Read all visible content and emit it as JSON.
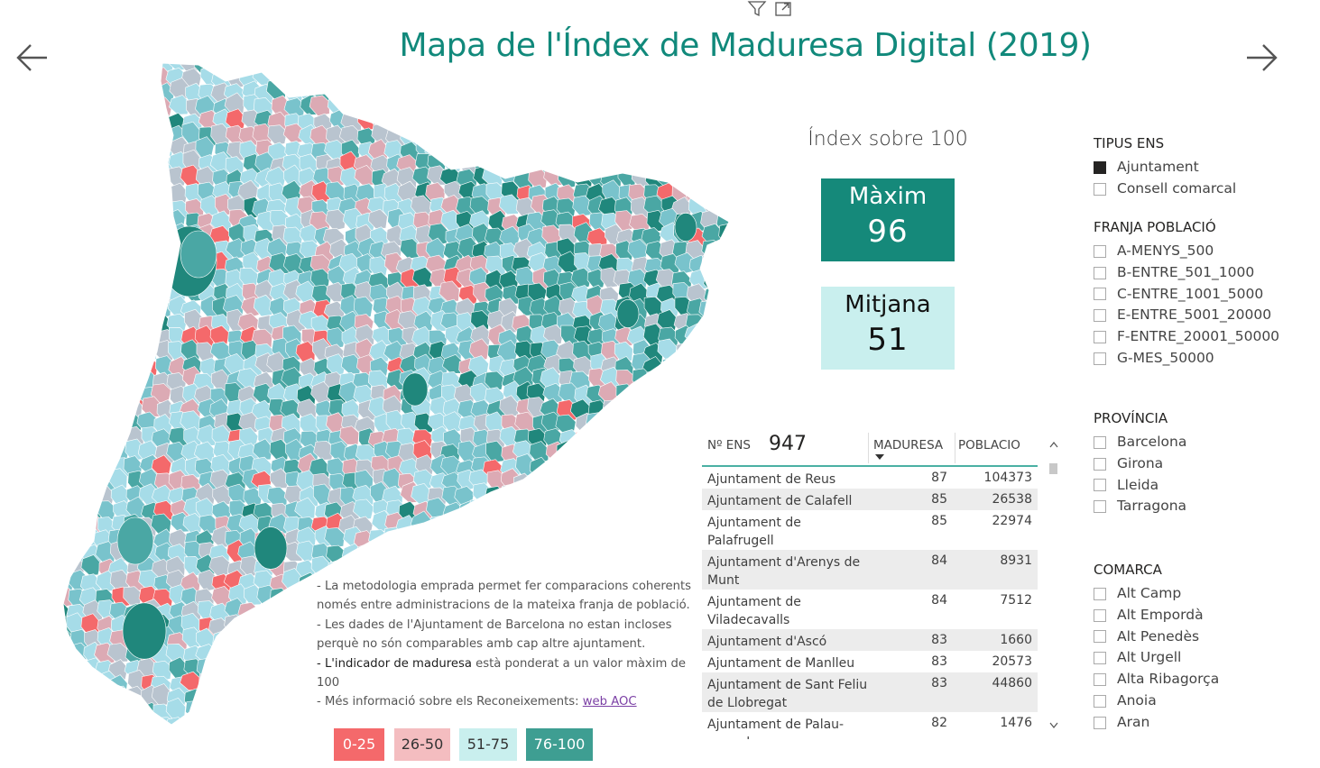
{
  "header": {
    "title": "Mapa de l'Índex de Maduresa Digital (2019)",
    "back_icon": "arrow-left-icon",
    "forward_icon": "arrow-right-icon",
    "filter_icon": "filter-icon",
    "focus_icon": "focus-mode-icon"
  },
  "kpi": {
    "heading": "Índex sobre 100",
    "max_label": "Màxim",
    "max_value": "96",
    "mean_label": "Mitjana",
    "mean_value": "51",
    "max_color": "#15897a",
    "mean_color": "#c9efee"
  },
  "slicers": {
    "tipus": {
      "title": "TIPUS ENS",
      "options": [
        {
          "label": "Ajuntament",
          "checked": true
        },
        {
          "label": "Consell comarcal",
          "checked": false
        }
      ]
    },
    "franja": {
      "title": "FRANJA POBLACIÓ",
      "options": [
        {
          "label": "A-MENYS_500"
        },
        {
          "label": "B-ENTRE_501_1000"
        },
        {
          "label": "C-ENTRE_1001_5000"
        },
        {
          "label": "E-ENTRE_5001_20000"
        },
        {
          "label": "F-ENTRE_20001_50000"
        },
        {
          "label": "G-MES_50000"
        }
      ]
    },
    "provincia": {
      "title": "PROVÍNCIA",
      "options": [
        {
          "label": "Barcelona"
        },
        {
          "label": "Girona"
        },
        {
          "label": "Lleida"
        },
        {
          "label": "Tarragona"
        }
      ]
    },
    "comarca": {
      "title": "COMARCA",
      "options": [
        {
          "label": "Alt Camp"
        },
        {
          "label": "Alt Empordà"
        },
        {
          "label": "Alt Penedès"
        },
        {
          "label": "Alt Urgell"
        },
        {
          "label": "Alta Ribagorça"
        },
        {
          "label": "Anoia"
        },
        {
          "label": "Aran"
        }
      ]
    }
  },
  "table": {
    "count_label": "Nº ENS",
    "count_value": "947",
    "col_maduresa": "MADURESA",
    "col_poblacio": "POBLACIO",
    "sort_icon": "sort-desc-icon",
    "rows": [
      {
        "name": "Ajuntament de Reus",
        "maduresa": "87",
        "poblacio": "104373"
      },
      {
        "name": "Ajuntament de Calafell",
        "maduresa": "85",
        "poblacio": "26538"
      },
      {
        "name": "Ajuntament de Palafrugell",
        "maduresa": "85",
        "poblacio": "22974"
      },
      {
        "name": "Ajuntament d'Arenys de Munt",
        "maduresa": "84",
        "poblacio": "8931"
      },
      {
        "name": "Ajuntament de Viladecavalls",
        "maduresa": "84",
        "poblacio": "7512"
      },
      {
        "name": "Ajuntament d'Ascó",
        "maduresa": "83",
        "poblacio": "1660"
      },
      {
        "name": "Ajuntament de Manlleu",
        "maduresa": "83",
        "poblacio": "20573"
      },
      {
        "name": "Ajuntament de Sant Feliu de Llobregat",
        "maduresa": "83",
        "poblacio": "44860"
      },
      {
        "name": "Ajuntament de Palau-saverdera",
        "maduresa": "82",
        "poblacio": "1476"
      }
    ]
  },
  "notes": {
    "line1": "- La metodologia emprada permet fer comparacions coherents només entre administracions de la mateixa franja de població.",
    "line2": "- Les dades de l'Ajuntament de Barcelona no estan incloses perquè no són comparables amb cap altre ajuntament.",
    "line3_dark": "- L'indicador de maduresa",
    "line3_rest": " està ponderat a un valor màxim de 100",
    "line4": "- Més informació sobre els Reconeixements: ",
    "link": "web AOC"
  },
  "legend": [
    {
      "label": "0-25",
      "bg": "#f4696b",
      "fg": "#ffffff"
    },
    {
      "label": "26-50",
      "bg": "#f4bdc0",
      "fg": "#333333"
    },
    {
      "label": "51-75",
      "bg": "#c9efee",
      "fg": "#333333"
    },
    {
      "label": "76-100",
      "bg": "#3e9e92",
      "fg": "#ffffff"
    }
  ],
  "map": {
    "name": "Catalunya",
    "colors": {
      "low": "#f4696b",
      "low_mid": "#dcaab4",
      "grey": "#b9c4cf",
      "light": "#a6dce8",
      "mid": "#79c3cc",
      "teal": "#4aa7a4",
      "dark": "#20877c"
    }
  }
}
